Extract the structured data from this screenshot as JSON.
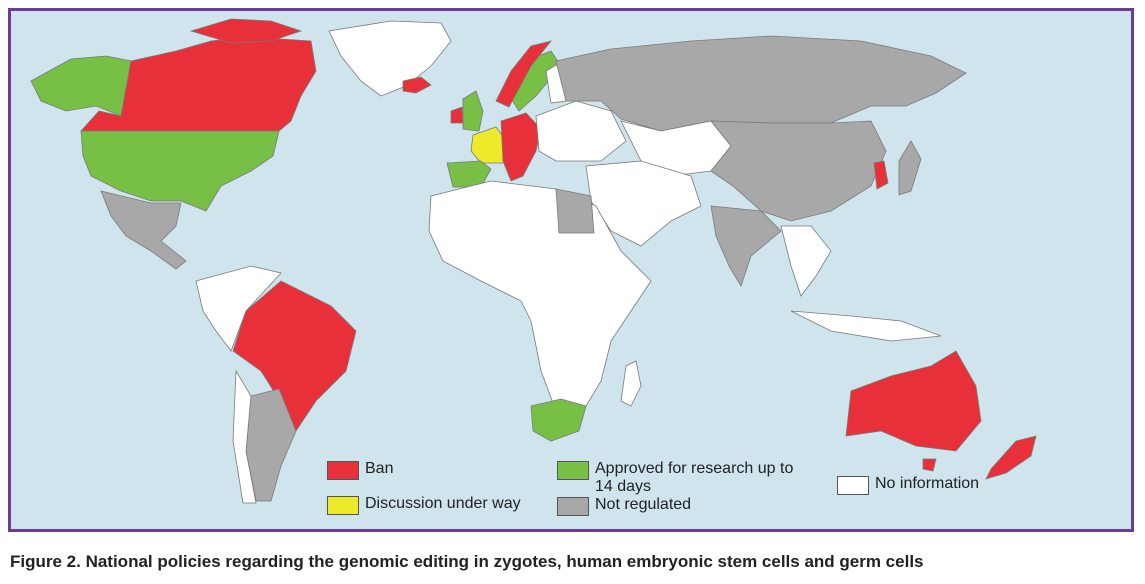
{
  "legend": [
    {
      "key": "ban",
      "label": "Ban",
      "color": "#e8303a"
    },
    {
      "key": "discussion",
      "label": "Discussion under way",
      "color": "#ecea2a"
    },
    {
      "key": "approved",
      "label": "Approved for research up to 14 days",
      "color": "#78bf45"
    },
    {
      "key": "not_regulated",
      "label": "Not regulated",
      "color": "#a8a8a8"
    },
    {
      "key": "no_information",
      "label": "No information",
      "color": "#ffffff"
    }
  ],
  "colors": {
    "ocean": "#cfe4ec",
    "border": "#6a3d8f",
    "country_outline": "#7a7a7a"
  },
  "caption": "Figure 2. National policies regarding the genomic editing in zygotes, human embryonic stem cells and germ cells"
}
